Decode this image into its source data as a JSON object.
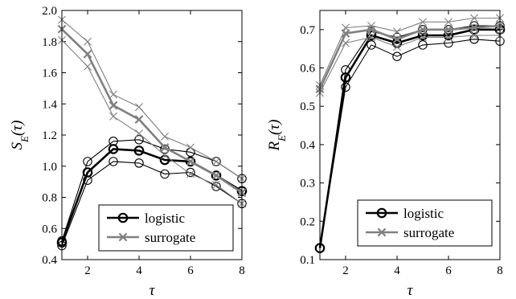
{
  "chart_data": [
    {
      "type": "line",
      "ylabel": "S_E(τ)",
      "xlabel": "τ",
      "xlim": [
        1,
        8
      ],
      "ylim": [
        0.4,
        2.0
      ],
      "xticks": [
        2,
        4,
        6,
        8
      ],
      "xtick_labels": [
        "2",
        "4",
        "6",
        "8"
      ],
      "yticks": [
        0.4,
        0.6,
        0.8,
        1.0,
        1.2,
        1.4,
        1.6,
        1.8,
        2.0
      ],
      "ytick_labels": [
        "0.4",
        "0.6",
        "0.8",
        "1.0",
        "1.2",
        "1.4",
        "1.6",
        "1.8",
        "2.0"
      ],
      "legend_position": "bottom-right",
      "x": [
        1,
        2,
        3,
        4,
        5,
        6,
        7,
        8
      ],
      "series": [
        {
          "name": "logistic",
          "color": "#000000",
          "marker": "circle",
          "values": [
            0.51,
            0.96,
            1.11,
            1.1,
            1.04,
            1.03,
            0.94,
            0.84
          ],
          "upper": [
            0.52,
            1.03,
            1.16,
            1.17,
            1.11,
            1.09,
            1.03,
            0.92
          ],
          "lower": [
            0.49,
            0.91,
            1.03,
            1.02,
            0.95,
            0.96,
            0.87,
            0.76
          ]
        },
        {
          "name": "surrogate",
          "color": "#808080",
          "marker": "x",
          "values": [
            1.88,
            1.72,
            1.39,
            1.3,
            1.12,
            1.03,
            0.94,
            0.83
          ],
          "upper": [
            1.94,
            1.8,
            1.46,
            1.38,
            1.19,
            1.12,
            1.03,
            0.92
          ],
          "lower": [
            1.81,
            1.64,
            1.32,
            1.21,
            1.07,
            0.95,
            0.88,
            0.76
          ]
        }
      ]
    },
    {
      "type": "line",
      "ylabel": "R_E(τ)",
      "xlabel": "τ",
      "xlim": [
        1,
        8
      ],
      "ylim": [
        0.1,
        0.75
      ],
      "xticks": [
        2,
        4,
        6,
        8
      ],
      "xtick_labels": [
        "2",
        "4",
        "6",
        "8"
      ],
      "yticks": [
        0.1,
        0.2,
        0.3,
        0.4,
        0.5,
        0.6,
        0.7
      ],
      "ytick_labels": [
        "0.1",
        "0.2",
        "0.3",
        "0.4",
        "0.5",
        "0.6",
        "0.7"
      ],
      "legend_position": "bottom-right",
      "x": [
        1,
        2,
        3,
        4,
        5,
        6,
        7,
        8
      ],
      "series": [
        {
          "name": "logistic",
          "color": "#000000",
          "marker": "circle",
          "values": [
            0.13,
            0.575,
            0.685,
            0.665,
            0.685,
            0.685,
            0.7,
            0.7
          ],
          "upper": [
            0.13,
            0.595,
            0.695,
            0.68,
            0.7,
            0.7,
            0.71,
            0.71
          ],
          "lower": [
            0.13,
            0.55,
            0.66,
            0.63,
            0.66,
            0.665,
            0.675,
            0.67
          ]
        },
        {
          "name": "surrogate",
          "color": "#808080",
          "marker": "x",
          "values": [
            0.545,
            0.69,
            0.7,
            0.675,
            0.7,
            0.7,
            0.705,
            0.71
          ],
          "upper": [
            0.555,
            0.705,
            0.71,
            0.695,
            0.72,
            0.72,
            0.73,
            0.73
          ],
          "lower": [
            0.535,
            0.665,
            0.68,
            0.655,
            0.68,
            0.68,
            0.685,
            0.685
          ]
        }
      ]
    }
  ]
}
